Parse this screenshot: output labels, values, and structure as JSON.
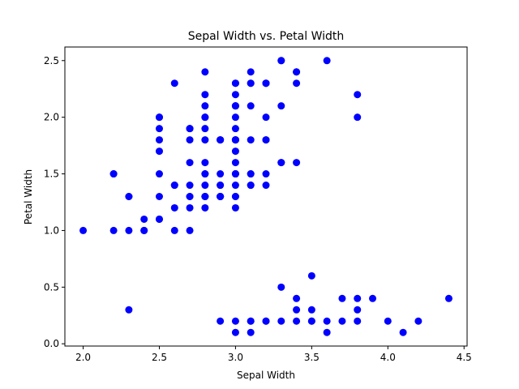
{
  "chart_data": {
    "type": "scatter",
    "title": "Sepal Width vs. Petal Width",
    "xlabel": "Sepal Width",
    "ylabel": "Petal Width",
    "xlim": [
      1.88,
      4.52
    ],
    "ylim": [
      -0.02,
      2.62
    ],
    "xticks": [
      "2.0",
      "2.5",
      "3.0",
      "3.5",
      "4.0",
      "4.5"
    ],
    "yticks": [
      "0.0",
      "0.5",
      "1.0",
      "1.5",
      "2.0",
      "2.5"
    ],
    "grid": false,
    "marker_color": "#0000ff",
    "points": [
      [
        3.5,
        0.2
      ],
      [
        3.0,
        0.2
      ],
      [
        3.2,
        0.2
      ],
      [
        3.1,
        0.2
      ],
      [
        3.6,
        0.2
      ],
      [
        3.9,
        0.4
      ],
      [
        3.4,
        0.3
      ],
      [
        3.4,
        0.2
      ],
      [
        2.9,
        0.2
      ],
      [
        3.1,
        0.1
      ],
      [
        3.7,
        0.2
      ],
      [
        3.0,
        0.1
      ],
      [
        4.0,
        0.2
      ],
      [
        4.4,
        0.4
      ],
      [
        3.8,
        0.3
      ],
      [
        3.8,
        0.2
      ],
      [
        3.3,
        0.2
      ],
      [
        4.1,
        0.1
      ],
      [
        4.2,
        0.2
      ],
      [
        3.6,
        0.1
      ],
      [
        2.3,
        0.3
      ],
      [
        3.5,
        0.6
      ],
      [
        3.5,
        0.3
      ],
      [
        3.3,
        0.5
      ],
      [
        3.7,
        0.4
      ],
      [
        3.8,
        0.4
      ],
      [
        3.4,
        0.4
      ],
      [
        3.2,
        0.2
      ],
      [
        3.5,
        0.2
      ],
      [
        3.1,
        0.2
      ],
      [
        3.2,
        1.4
      ],
      [
        3.2,
        1.5
      ],
      [
        3.1,
        1.5
      ],
      [
        2.3,
        1.3
      ],
      [
        2.8,
        1.5
      ],
      [
        2.8,
        1.3
      ],
      [
        3.3,
        1.6
      ],
      [
        2.4,
        1.0
      ],
      [
        2.9,
        1.3
      ],
      [
        2.7,
        1.4
      ],
      [
        2.0,
        1.0
      ],
      [
        3.0,
        1.5
      ],
      [
        2.2,
        1.0
      ],
      [
        2.9,
        1.4
      ],
      [
        2.9,
        1.3
      ],
      [
        3.1,
        1.4
      ],
      [
        3.0,
        1.5
      ],
      [
        2.7,
        1.0
      ],
      [
        2.2,
        1.5
      ],
      [
        2.5,
        1.1
      ],
      [
        3.2,
        1.8
      ],
      [
        2.8,
        1.3
      ],
      [
        2.5,
        1.5
      ],
      [
        2.8,
        1.2
      ],
      [
        2.9,
        1.3
      ],
      [
        3.0,
        1.4
      ],
      [
        2.8,
        1.4
      ],
      [
        3.0,
        1.7
      ],
      [
        2.9,
        1.5
      ],
      [
        2.6,
        1.0
      ],
      [
        2.4,
        1.1
      ],
      [
        2.4,
        1.0
      ],
      [
        2.7,
        1.2
      ],
      [
        2.7,
        1.6
      ],
      [
        3.0,
        1.5
      ],
      [
        3.4,
        1.6
      ],
      [
        3.1,
        1.5
      ],
      [
        2.3,
        1.3
      ],
      [
        3.0,
        1.3
      ],
      [
        2.5,
        1.3
      ],
      [
        2.6,
        1.2
      ],
      [
        2.6,
        1.4
      ],
      [
        2.3,
        1.0
      ],
      [
        2.7,
        1.3
      ],
      [
        3.0,
        1.2
      ],
      [
        2.9,
        1.3
      ],
      [
        2.5,
        1.1
      ],
      [
        2.8,
        1.3
      ],
      [
        2.9,
        1.8
      ],
      [
        3.1,
        1.4
      ],
      [
        3.3,
        2.5
      ],
      [
        2.7,
        1.9
      ],
      [
        3.0,
        2.1
      ],
      [
        2.9,
        1.8
      ],
      [
        3.0,
        2.2
      ],
      [
        3.0,
        2.1
      ],
      [
        2.5,
        1.7
      ],
      [
        2.9,
        1.8
      ],
      [
        2.5,
        1.8
      ],
      [
        3.6,
        2.5
      ],
      [
        3.2,
        2.0
      ],
      [
        2.7,
        1.9
      ],
      [
        3.0,
        2.1
      ],
      [
        2.5,
        2.0
      ],
      [
        2.8,
        2.4
      ],
      [
        3.2,
        2.3
      ],
      [
        3.0,
        1.8
      ],
      [
        3.8,
        2.2
      ],
      [
        2.6,
        2.3
      ],
      [
        2.2,
        1.5
      ],
      [
        3.2,
        2.3
      ],
      [
        2.8,
        2.0
      ],
      [
        2.8,
        2.0
      ],
      [
        2.7,
        1.8
      ],
      [
        3.3,
        2.1
      ],
      [
        3.2,
        1.8
      ],
      [
        2.8,
        1.8
      ],
      [
        3.0,
        1.8
      ],
      [
        2.8,
        2.1
      ],
      [
        3.0,
        1.6
      ],
      [
        2.8,
        1.9
      ],
      [
        3.8,
        2.0
      ],
      [
        2.8,
        2.2
      ],
      [
        2.8,
        1.5
      ],
      [
        2.6,
        1.4
      ],
      [
        3.0,
        2.3
      ],
      [
        3.4,
        2.4
      ],
      [
        3.1,
        1.8
      ],
      [
        3.0,
        1.8
      ],
      [
        3.1,
        2.1
      ],
      [
        3.1,
        2.4
      ],
      [
        3.1,
        2.3
      ],
      [
        2.7,
        1.9
      ],
      [
        3.2,
        2.3
      ],
      [
        3.3,
        2.5
      ],
      [
        3.0,
        2.3
      ],
      [
        2.5,
        1.9
      ],
      [
        3.0,
        2.0
      ],
      [
        3.4,
        2.3
      ],
      [
        3.0,
        1.8
      ],
      [
        2.9,
        1.4
      ],
      [
        2.8,
        1.6
      ],
      [
        2.7,
        1.3
      ],
      [
        3.0,
        1.9
      ],
      [
        3.0,
        1.3
      ],
      [
        3.4,
        2.4
      ],
      [
        2.9,
        1.3
      ],
      [
        3.1,
        2.3
      ],
      [
        2.5,
        2.0
      ],
      [
        3.3,
        1.6
      ]
    ]
  }
}
